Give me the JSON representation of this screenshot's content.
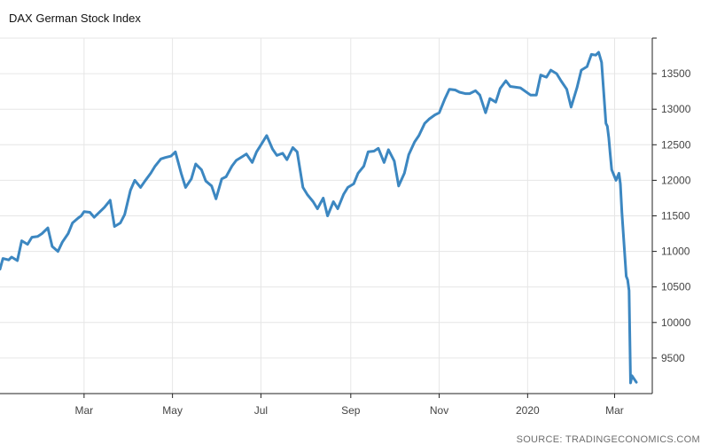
{
  "chart_data": {
    "type": "line",
    "title": "DAX German Stock Index",
    "source": "SOURCE: TRADINGECONOMICS.COM",
    "xlabel": "",
    "ylabel": "",
    "x_tick_labels": [
      "Mar",
      "May",
      "Jul",
      "Sep",
      "Nov",
      "2020",
      "Mar"
    ],
    "x_tick_dates": [
      "2019-03-01",
      "2019-05-01",
      "2019-07-01",
      "2019-09-01",
      "2019-11-01",
      "2020-01-01",
      "2020-03-01"
    ],
    "x_range": [
      "2019-01-02",
      "2020-03-27"
    ],
    "y_ticks": [
      9500,
      10000,
      10500,
      11000,
      11500,
      12000,
      12500,
      13000,
      13500
    ],
    "ylim": [
      9000,
      14000
    ],
    "y_axis_position": "right",
    "grid": true,
    "legend": "none",
    "color": "#3c87c1",
    "series": [
      {
        "x": [
          "2019-01-02",
          "2019-01-04",
          "2019-01-08",
          "2019-01-10",
          "2019-01-14",
          "2019-01-17",
          "2019-01-21",
          "2019-01-24",
          "2019-01-28",
          "2019-01-31",
          "2019-02-04",
          "2019-02-07",
          "2019-02-11",
          "2019-02-14",
          "2019-02-18",
          "2019-02-21",
          "2019-02-25",
          "2019-02-27",
          "2019-03-01",
          "2019-03-05",
          "2019-03-08",
          "2019-03-12",
          "2019-03-15",
          "2019-03-19",
          "2019-03-22",
          "2019-03-26",
          "2019-03-29",
          "2019-04-02",
          "2019-04-05",
          "2019-04-09",
          "2019-04-12",
          "2019-04-16",
          "2019-04-19",
          "2019-04-23",
          "2019-04-26",
          "2019-04-30",
          "2019-05-03",
          "2019-05-07",
          "2019-05-10",
          "2019-05-14",
          "2019-05-17",
          "2019-05-21",
          "2019-05-24",
          "2019-05-28",
          "2019-05-31",
          "2019-06-04",
          "2019-06-07",
          "2019-06-11",
          "2019-06-14",
          "2019-06-18",
          "2019-06-21",
          "2019-06-25",
          "2019-06-28",
          "2019-07-02",
          "2019-07-05",
          "2019-07-09",
          "2019-07-12",
          "2019-07-16",
          "2019-07-19",
          "2019-07-23",
          "2019-07-26",
          "2019-07-30",
          "2019-08-02",
          "2019-08-06",
          "2019-08-09",
          "2019-08-13",
          "2019-08-16",
          "2019-08-20",
          "2019-08-23",
          "2019-08-27",
          "2019-08-30",
          "2019-09-03",
          "2019-09-06",
          "2019-09-10",
          "2019-09-13",
          "2019-09-17",
          "2019-09-20",
          "2019-09-24",
          "2019-09-27",
          "2019-10-01",
          "2019-10-04",
          "2019-10-08",
          "2019-10-11",
          "2019-10-15",
          "2019-10-18",
          "2019-10-22",
          "2019-10-25",
          "2019-10-29",
          "2019-11-01",
          "2019-11-05",
          "2019-11-08",
          "2019-11-12",
          "2019-11-15",
          "2019-11-19",
          "2019-11-22",
          "2019-11-26",
          "2019-11-29",
          "2019-12-03",
          "2019-12-06",
          "2019-12-10",
          "2019-12-13",
          "2019-12-17",
          "2019-12-20",
          "2019-12-27",
          "2020-01-03",
          "2020-01-07",
          "2020-01-10",
          "2020-01-14",
          "2020-01-17",
          "2020-01-21",
          "2020-01-24",
          "2020-01-28",
          "2020-01-31",
          "2020-02-04",
          "2020-02-07",
          "2020-02-11",
          "2020-02-14",
          "2020-02-17",
          "2020-02-19",
          "2020-02-21",
          "2020-02-24",
          "2020-02-25",
          "2020-02-26",
          "2020-02-27",
          "2020-02-28",
          "2020-03-02",
          "2020-03-03",
          "2020-03-04",
          "2020-03-05",
          "2020-03-06",
          "2020-03-09",
          "2020-03-10",
          "2020-03-11",
          "2020-03-12",
          "2020-03-13",
          "2020-03-16"
        ],
        "values": [
          10750,
          10900,
          10880,
          10920,
          10870,
          11150,
          11100,
          11200,
          11210,
          11250,
          11330,
          11070,
          11000,
          11130,
          11250,
          11400,
          11470,
          11500,
          11560,
          11550,
          11480,
          11560,
          11620,
          11720,
          11350,
          11400,
          11520,
          11860,
          12000,
          11900,
          11990,
          12100,
          12200,
          12300,
          12320,
          12340,
          12400,
          12100,
          11900,
          12020,
          12230,
          12150,
          11990,
          11920,
          11740,
          12020,
          12050,
          12200,
          12280,
          12330,
          12370,
          12250,
          12400,
          12530,
          12630,
          12440,
          12350,
          12380,
          12290,
          12460,
          12400,
          11900,
          11800,
          11700,
          11600,
          11750,
          11500,
          11700,
          11600,
          11800,
          11900,
          11950,
          12100,
          12200,
          12400,
          12410,
          12450,
          12250,
          12430,
          12270,
          11920,
          12100,
          12360,
          12540,
          12630,
          12800,
          12860,
          12920,
          12950,
          13150,
          13280,
          13270,
          13240,
          13220,
          13220,
          13260,
          13200,
          12950,
          13150,
          13100,
          13290,
          13400,
          13320,
          13300,
          13200,
          13200,
          13480,
          13450,
          13550,
          13500,
          13400,
          13280,
          13030,
          13300,
          13550,
          13600,
          13770,
          13760,
          13800,
          13660,
          12800,
          12760,
          12600,
          12360,
          12150,
          12000,
          12050,
          12100,
          11950,
          11550,
          10650,
          10600,
          10450,
          9150,
          9250,
          9160
        ],
        "color": "#3c87c1"
      }
    ]
  }
}
